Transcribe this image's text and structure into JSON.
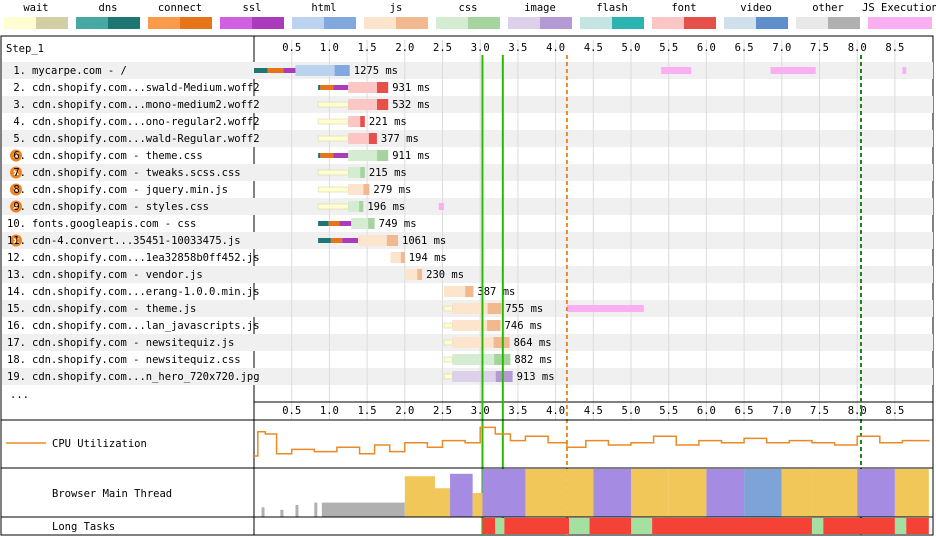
{
  "step_label": "Step_1",
  "more_label": "...",
  "legend": [
    {
      "name": "wait",
      "c1": "#fffed0",
      "c2": "#d1cfa3"
    },
    {
      "name": "dns",
      "c1": "#48a8a4",
      "c2": "#1e7672"
    },
    {
      "name": "connect",
      "c1": "#fa9a4b",
      "c2": "#e6751a"
    },
    {
      "name": "ssl",
      "c1": "#d15fe1",
      "c2": "#a93bbc"
    },
    {
      "name": "html",
      "c1": "#bcd3ef",
      "c2": "#82a8e0"
    },
    {
      "name": "js",
      "c1": "#fde4cc",
      "c2": "#f2b991"
    },
    {
      "name": "css",
      "c1": "#d4ecd1",
      "c2": "#a6d49f"
    },
    {
      "name": "image",
      "c1": "#ddd0ea",
      "c2": "#b49ad2"
    },
    {
      "name": "flash",
      "c1": "#c5e5e2",
      "c2": "#2cb4b0"
    },
    {
      "name": "font",
      "c1": "#fbc6c4",
      "c2": "#e6504a"
    },
    {
      "name": "video",
      "c1": "#d0dfec",
      "c2": "#5e8fcb"
    },
    {
      "name": "other",
      "c1": "#e8e8e8",
      "c2": "#b0b0b0"
    },
    {
      "name": "JS Execution",
      "c1": "#fbaff3",
      "c2": "#fbaff3"
    }
  ],
  "chart_data": {
    "type": "waterfall",
    "x_unit": "seconds",
    "x_range": [
      0,
      8.95
    ],
    "x_ticks": [
      "0.5",
      "1.0",
      "1.5",
      "2.0",
      "2.5",
      "3.0",
      "3.5",
      "4.0",
      "4.5",
      "5.0",
      "5.5",
      "6.0",
      "6.5",
      "7.0",
      "7.5",
      "8.0",
      "8.5"
    ],
    "markers": [
      {
        "name": "start-render",
        "time": 3.03,
        "color": "#28bc00",
        "style": "solid"
      },
      {
        "name": "first-paint",
        "time": 3.3,
        "color": "#28bc00",
        "style": "solid"
      },
      {
        "name": "dom-content-loaded",
        "time": 4.15,
        "color": "#e88a25",
        "style": "dashed"
      },
      {
        "name": "onload",
        "time": 8.05,
        "color": "#15871a",
        "style": "dashed"
      }
    ],
    "requests": [
      {
        "index": "1.",
        "label": "mycarpe.com - /",
        "warn": false,
        "type": "html",
        "start": 0.0,
        "dns": [
          0,
          0.18
        ],
        "connect": [
          0.18,
          0.39
        ],
        "ssl": [
          0.39,
          0.55
        ],
        "wait": [
          0.55,
          0.55
        ],
        "download": [
          0.55,
          1.27
        ],
        "duration": "1275 ms"
      },
      {
        "index": "2.",
        "label": "cdn.shopify.com...swald-Medium.woff2",
        "warn": false,
        "type": "font",
        "start": 0.85,
        "dns": [
          0.85,
          0.88
        ],
        "connect": [
          0.88,
          1.05
        ],
        "ssl": [
          1.05,
          1.25
        ],
        "wait": [
          1.25,
          1.25
        ],
        "download": [
          1.25,
          1.78
        ],
        "duration": "931 ms"
      },
      {
        "index": "3.",
        "label": "cdn.shopify.com...mono-medium2.woff2",
        "warn": false,
        "type": "font",
        "start": 0.85,
        "wait": [
          0.85,
          1.25
        ],
        "download": [
          1.25,
          1.78
        ],
        "duration": "532 ms"
      },
      {
        "index": "4.",
        "label": "cdn.shopify.com...ono-regular2.woff2",
        "warn": false,
        "type": "font",
        "start": 0.85,
        "wait": [
          0.85,
          1.25
        ],
        "download": [
          1.25,
          1.47
        ],
        "duration": "221 ms"
      },
      {
        "index": "5.",
        "label": "cdn.shopify.com...wald-Regular.woff2",
        "warn": false,
        "type": "font",
        "start": 0.85,
        "wait": [
          0.85,
          1.25
        ],
        "download": [
          1.25,
          1.63
        ],
        "duration": "377 ms"
      },
      {
        "index": "6.",
        "label": "cdn.shopify.com - theme.css",
        "warn": true,
        "type": "css",
        "start": 0.85,
        "dns": [
          0.85,
          0.88
        ],
        "connect": [
          0.88,
          1.05
        ],
        "ssl": [
          1.05,
          1.25
        ],
        "wait": [
          1.25,
          1.25
        ],
        "download": [
          1.25,
          1.78
        ],
        "duration": "911 ms"
      },
      {
        "index": "7.",
        "label": "cdn.shopify.com - tweaks.scss.css",
        "warn": true,
        "type": "css",
        "start": 0.85,
        "wait": [
          0.85,
          1.25
        ],
        "download": [
          1.25,
          1.47
        ],
        "duration": "215 ms"
      },
      {
        "index": "8.",
        "label": "cdn.shopify.com - jquery.min.js",
        "warn": true,
        "type": "js",
        "start": 0.85,
        "wait": [
          0.85,
          1.25
        ],
        "download": [
          1.25,
          1.53
        ],
        "duration": "279 ms"
      },
      {
        "index": "9.",
        "label": "cdn.shopify.com - styles.css",
        "warn": true,
        "type": "css",
        "start": 0.85,
        "wait": [
          0.85,
          1.25
        ],
        "download": [
          1.25,
          1.45
        ],
        "duration": "196 ms"
      },
      {
        "index": "10.",
        "label": "fonts.googleapis.com - css",
        "warn": false,
        "type": "css",
        "start": 0.85,
        "dns": [
          0.85,
          0.99
        ],
        "connect": [
          0.99,
          1.13
        ],
        "ssl": [
          1.13,
          1.29
        ],
        "wait": [
          1.29,
          1.29
        ],
        "download": [
          1.29,
          1.6
        ],
        "duration": "749 ms"
      },
      {
        "index": "11.",
        "label": "cdn-4.convert...35451-10033475.js",
        "warn": true,
        "type": "js",
        "start": 0.85,
        "dns": [
          0.85,
          1.02
        ],
        "connect": [
          1.02,
          1.17
        ],
        "ssl": [
          1.17,
          1.38
        ],
        "wait": [
          1.38,
          1.38
        ],
        "download": [
          1.38,
          1.91
        ],
        "duration": "1061 ms"
      },
      {
        "index": "12.",
        "label": "cdn.shopify.com...1ea32858b0ff452.js",
        "warn": false,
        "type": "js",
        "start": 1.81,
        "wait": [
          1.81,
          1.81
        ],
        "download": [
          1.81,
          2.0
        ],
        "duration": "194 ms"
      },
      {
        "index": "13.",
        "label": "cdn.shopify.com - vendor.js",
        "warn": false,
        "type": "js",
        "start": 2.0,
        "wait": [
          2.0,
          2.0
        ],
        "download": [
          2.0,
          2.23
        ],
        "duration": "230 ms"
      },
      {
        "index": "14.",
        "label": "cdn.shopify.com...erang-1.0.0.min.js",
        "warn": false,
        "type": "js",
        "start": 2.52,
        "wait": [
          2.52,
          2.52
        ],
        "download": [
          2.52,
          2.91
        ],
        "duration": "387 ms"
      },
      {
        "index": "15.",
        "label": "cdn.shopify.com - theme.js",
        "warn": false,
        "type": "js",
        "start": 2.52,
        "wait": [
          2.52,
          2.63
        ],
        "download": [
          2.63,
          3.28
        ],
        "duration": "755 ms"
      },
      {
        "index": "16.",
        "label": "cdn.shopify.com...lan_javascripts.js",
        "warn": false,
        "type": "js",
        "start": 2.52,
        "wait": [
          2.52,
          2.63
        ],
        "download": [
          2.63,
          3.27
        ],
        "duration": "746 ms"
      },
      {
        "index": "17.",
        "label": "cdn.shopify.com - newsitequiz.js",
        "warn": false,
        "type": "js",
        "start": 2.52,
        "wait": [
          2.52,
          2.63
        ],
        "download": [
          2.63,
          3.39
        ],
        "duration": "864 ms"
      },
      {
        "index": "18.",
        "label": "cdn.shopify.com - newsitequiz.css",
        "warn": false,
        "type": "css",
        "start": 2.52,
        "wait": [
          2.52,
          2.63
        ],
        "download": [
          2.63,
          3.4
        ],
        "duration": "882 ms"
      },
      {
        "index": "19.",
        "label": "cdn.shopify.com...n_hero_720x720.jpg",
        "warn": false,
        "type": "image",
        "start": 2.52,
        "wait": [
          2.52,
          2.63
        ],
        "download": [
          2.63,
          3.43
        ],
        "duration": "913 ms"
      }
    ],
    "js_execution": [
      {
        "row": 0,
        "spans": [
          [
            5.4,
            5.8
          ],
          [
            6.85,
            7.45
          ],
          [
            8.6,
            8.65
          ]
        ]
      },
      {
        "row": 8,
        "spans": [
          [
            2.45,
            2.52
          ]
        ]
      },
      {
        "row": 14,
        "spans": [
          [
            4.15,
            5.17
          ]
        ]
      }
    ],
    "cpu": {
      "label": "CPU Utilization",
      "points": [
        [
          0,
          0.25
        ],
        [
          0.05,
          0.8
        ],
        [
          0.15,
          0.75
        ],
        [
          0.3,
          0.3
        ],
        [
          0.5,
          0.4
        ],
        [
          0.8,
          0.35
        ],
        [
          1.1,
          0.45
        ],
        [
          1.4,
          0.3
        ],
        [
          1.6,
          0.5
        ],
        [
          1.8,
          0.35
        ],
        [
          2.0,
          0.55
        ],
        [
          2.3,
          0.45
        ],
        [
          2.5,
          0.6
        ],
        [
          2.8,
          0.55
        ],
        [
          3.0,
          0.9
        ],
        [
          3.2,
          0.75
        ],
        [
          3.4,
          0.6
        ],
        [
          3.6,
          0.7
        ],
        [
          3.9,
          0.55
        ],
        [
          4.15,
          0.45
        ],
        [
          4.4,
          0.6
        ],
        [
          4.7,
          0.5
        ],
        [
          5.0,
          0.55
        ],
        [
          5.3,
          0.7
        ],
        [
          5.6,
          0.5
        ],
        [
          5.9,
          0.6
        ],
        [
          6.2,
          0.55
        ],
        [
          6.5,
          0.65
        ],
        [
          6.8,
          0.55
        ],
        [
          7.1,
          0.6
        ],
        [
          7.4,
          0.55
        ],
        [
          7.7,
          0.5
        ],
        [
          8.0,
          0.7
        ],
        [
          8.3,
          0.55
        ],
        [
          8.6,
          0.6
        ],
        [
          8.95,
          0.58
        ]
      ]
    },
    "main_thread": {
      "label": "Browser Main Thread"
    },
    "long_tasks": {
      "label": "Long Tasks",
      "spans": [
        {
          "s": 3.03,
          "e": 3.2,
          "c": "#f44336"
        },
        {
          "s": 3.2,
          "e": 3.32,
          "c": "#a4e0a0"
        },
        {
          "s": 3.32,
          "e": 4.18,
          "c": "#f44336"
        },
        {
          "s": 4.18,
          "e": 4.45,
          "c": "#a4e0a0"
        },
        {
          "s": 4.45,
          "e": 5.0,
          "c": "#f44336"
        },
        {
          "s": 5.0,
          "e": 5.28,
          "c": "#a4e0a0"
        },
        {
          "s": 5.28,
          "e": 7.4,
          "c": "#f44336"
        },
        {
          "s": 7.4,
          "e": 7.55,
          "c": "#a4e0a0"
        },
        {
          "s": 7.55,
          "e": 8.5,
          "c": "#f44336"
        },
        {
          "s": 8.5,
          "e": 8.65,
          "c": "#a4e0a0"
        },
        {
          "s": 8.65,
          "e": 8.95,
          "c": "#f44336"
        }
      ]
    }
  }
}
